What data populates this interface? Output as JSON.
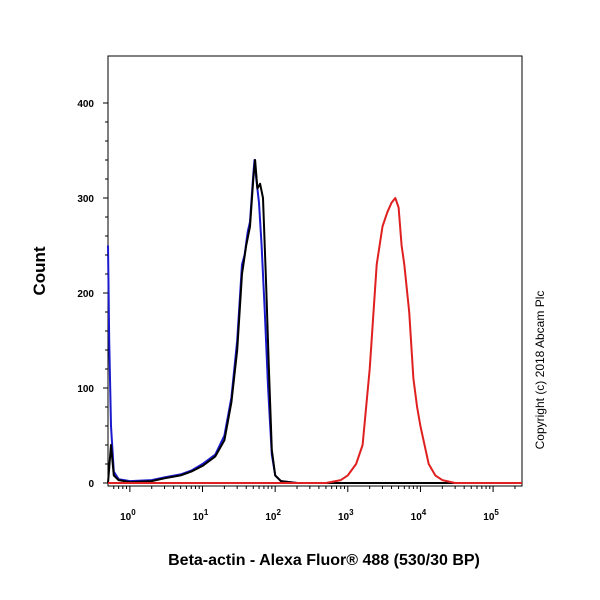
{
  "chart_data": {
    "type": "line",
    "title": "",
    "xlabel": "Beta-actin - Alexa Fluor® 488 (530/30 BP)",
    "ylabel": "Count",
    "x_scale": "log",
    "xlim": [
      0.5,
      250000
    ],
    "ylim": [
      0,
      400
    ],
    "x_ticks": [
      {
        "value": 1,
        "base": "10",
        "exp": "0"
      },
      {
        "value": 10,
        "base": "10",
        "exp": "1"
      },
      {
        "value": 100,
        "base": "10",
        "exp": "2"
      },
      {
        "value": 1000,
        "base": "10",
        "exp": "3"
      },
      {
        "value": 10000,
        "base": "10",
        "exp": "4"
      },
      {
        "value": 100000,
        "base": "10",
        "exp": "5"
      }
    ],
    "y_ticks": [
      {
        "value": 0,
        "label": "0"
      },
      {
        "value": 100,
        "label": "100"
      },
      {
        "value": 200,
        "label": "200"
      },
      {
        "value": 300,
        "label": "300"
      },
      {
        "value": 400,
        "label": "400"
      }
    ],
    "grid": false,
    "series": [
      {
        "color": "#1a1acc",
        "points": [
          [
            0.5,
            250
          ],
          [
            0.52,
            150
          ],
          [
            0.55,
            60
          ],
          [
            0.6,
            12
          ],
          [
            0.7,
            4
          ],
          [
            1,
            2
          ],
          [
            2,
            3
          ],
          [
            3,
            6
          ],
          [
            5,
            9
          ],
          [
            7,
            13
          ],
          [
            10,
            20
          ],
          [
            15,
            30
          ],
          [
            20,
            50
          ],
          [
            25,
            90
          ],
          [
            30,
            150
          ],
          [
            35,
            230
          ],
          [
            38,
            240
          ],
          [
            42,
            265
          ],
          [
            45,
            275
          ],
          [
            50,
            325
          ],
          [
            52,
            340
          ],
          [
            55,
            320
          ],
          [
            60,
            295
          ],
          [
            65,
            250
          ],
          [
            72,
            180
          ],
          [
            80,
            100
          ],
          [
            90,
            30
          ],
          [
            100,
            8
          ],
          [
            120,
            2
          ],
          [
            200,
            0
          ],
          [
            250000,
            0
          ]
        ]
      },
      {
        "color": "#000000",
        "points": [
          [
            0.5,
            0
          ],
          [
            0.55,
            40
          ],
          [
            0.6,
            8
          ],
          [
            0.7,
            3
          ],
          [
            1,
            1
          ],
          [
            2,
            2
          ],
          [
            3,
            5
          ],
          [
            5,
            8
          ],
          [
            7,
            12
          ],
          [
            10,
            18
          ],
          [
            15,
            28
          ],
          [
            20,
            45
          ],
          [
            25,
            85
          ],
          [
            30,
            140
          ],
          [
            35,
            220
          ],
          [
            40,
            250
          ],
          [
            45,
            270
          ],
          [
            50,
            320
          ],
          [
            53,
            340
          ],
          [
            57,
            310
          ],
          [
            62,
            315
          ],
          [
            68,
            300
          ],
          [
            75,
            210
          ],
          [
            82,
            120
          ],
          [
            90,
            35
          ],
          [
            100,
            8
          ],
          [
            120,
            2
          ],
          [
            200,
            0
          ],
          [
            250000,
            0
          ]
        ]
      },
      {
        "color": "#e02020",
        "points": [
          [
            0.5,
            0
          ],
          [
            500,
            0
          ],
          [
            800,
            3
          ],
          [
            1000,
            8
          ],
          [
            1300,
            20
          ],
          [
            1600,
            40
          ],
          [
            2000,
            120
          ],
          [
            2500,
            230
          ],
          [
            3000,
            270
          ],
          [
            3500,
            285
          ],
          [
            4000,
            295
          ],
          [
            4500,
            300
          ],
          [
            5000,
            290
          ],
          [
            5500,
            250
          ],
          [
            6000,
            230
          ],
          [
            7000,
            180
          ],
          [
            8000,
            110
          ],
          [
            9000,
            80
          ],
          [
            10000,
            60
          ],
          [
            13000,
            20
          ],
          [
            16000,
            8
          ],
          [
            20000,
            3
          ],
          [
            30000,
            0
          ],
          [
            250000,
            0
          ]
        ]
      }
    ]
  },
  "copyright": "Copyright (c) 2018 Abcam Plc"
}
